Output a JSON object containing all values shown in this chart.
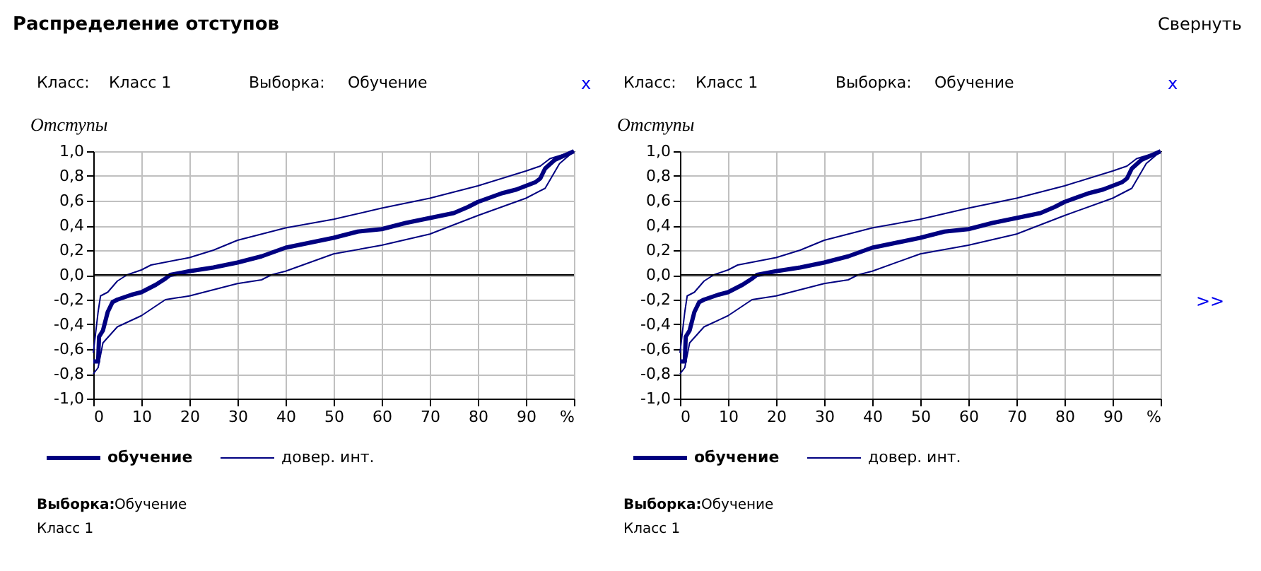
{
  "chart_data": [
    {
      "type": "line",
      "ylabel": "Отступы",
      "xlim": [
        0,
        100
      ],
      "ylim": [
        -1.0,
        1.0
      ],
      "xticks": [
        0,
        10,
        20,
        30,
        40,
        50,
        60,
        70,
        80,
        90,
        {
          "value": 100,
          "label": "%"
        }
      ],
      "yticks": [
        {
          "value": -1.0,
          "label": "-1,0"
        },
        {
          "value": -0.8,
          "label": "-0,8"
        },
        {
          "value": -0.6,
          "label": "-0,6"
        },
        {
          "value": -0.4,
          "label": "-0,4"
        },
        {
          "value": -0.2,
          "label": "-0,2"
        },
        {
          "value": 0,
          "label": "0,0"
        },
        {
          "value": 0.2,
          "label": "0,2"
        },
        {
          "value": 0.4,
          "label": "0,4"
        },
        {
          "value": 0.6,
          "label": "0,6"
        },
        {
          "value": 0.8,
          "label": "0,8"
        },
        {
          "value": 1.0,
          "label": "1,0"
        }
      ],
      "grid": true,
      "legend": "bottom left",
      "ref_lines": [
        {
          "axis": "y",
          "value": 0,
          "color": "#000000"
        }
      ],
      "series": [
        {
          "name": "обучение",
          "color": "#000080",
          "x": [
            0,
            1,
            1.2,
            2,
            3,
            4,
            5,
            8,
            10,
            13,
            15,
            16,
            20,
            25,
            30,
            35,
            40,
            45,
            50,
            55,
            60,
            65,
            70,
            75,
            78,
            80,
            85,
            88,
            92,
            93,
            94,
            96,
            100
          ],
          "values": [
            -0.7,
            -0.7,
            -0.5,
            -0.45,
            -0.3,
            -0.22,
            -0.2,
            -0.16,
            -0.14,
            -0.08,
            -0.03,
            0,
            0.03,
            0.06,
            0.1,
            0.15,
            0.22,
            0.26,
            0.3,
            0.35,
            0.37,
            0.42,
            0.46,
            0.5,
            0.55,
            0.59,
            0.66,
            0.69,
            0.75,
            0.78,
            0.86,
            0.93,
            1.0
          ]
        },
        {
          "name": "довер. инт.",
          "color": "#000080",
          "x": [
            0,
            1,
            1.5,
            3,
            5,
            7,
            10,
            12,
            20,
            25,
            30,
            40,
            50,
            60,
            70,
            80,
            90,
            93,
            95,
            100
          ],
          "values": [
            -0.63,
            -0.3,
            -0.17,
            -0.14,
            -0.05,
            0,
            0.04,
            0.08,
            0.14,
            0.2,
            0.28,
            0.38,
            0.45,
            0.54,
            0.62,
            0.72,
            0.84,
            0.88,
            0.94,
            1.0
          ]
        },
        {
          "color": "#000080",
          "x": [
            0,
            1,
            2,
            5,
            10,
            15,
            20,
            30,
            35,
            37,
            40,
            50,
            60,
            70,
            78,
            80,
            90,
            94,
            97,
            100
          ],
          "values": [
            -0.8,
            -0.75,
            -0.55,
            -0.42,
            -0.33,
            -0.2,
            -0.17,
            -0.07,
            -0.04,
            0,
            0.03,
            0.17,
            0.24,
            0.33,
            0.45,
            0.48,
            0.62,
            0.7,
            0.9,
            1.0
          ]
        }
      ],
      "annotations": [
        "Распределение отступов",
        "Класс:",
        "Класс 1",
        "Выборка:",
        "Обучение",
        "x",
        "Выборка:",
        "Обучение",
        "Класс 1"
      ]
    },
    {
      "type": "line",
      "ylabel": "Отступы",
      "xlim": [
        0,
        100
      ],
      "ylim": [
        -1.0,
        1.0
      ],
      "xticks": [
        0,
        10,
        20,
        30,
        40,
        50,
        60,
        70,
        80,
        90,
        {
          "value": 100,
          "label": "%"
        }
      ],
      "yticks": [
        {
          "value": -1.0,
          "label": "-1,0"
        },
        {
          "value": -0.8,
          "label": "-0,8"
        },
        {
          "value": -0.6,
          "label": "-0,6"
        },
        {
          "value": -0.4,
          "label": "-0,4"
        },
        {
          "value": -0.2,
          "label": "-0,2"
        },
        {
          "value": 0,
          "label": "0,0"
        },
        {
          "value": 0.2,
          "label": "0,2"
        },
        {
          "value": 0.4,
          "label": "0,4"
        },
        {
          "value": 0.6,
          "label": "0,6"
        },
        {
          "value": 0.8,
          "label": "0,8"
        },
        {
          "value": 1.0,
          "label": "1,0"
        }
      ],
      "grid": true,
      "legend": "bottom left",
      "ref_lines": [
        {
          "axis": "y",
          "value": 0,
          "color": "#000000"
        }
      ],
      "series": [
        {
          "name": "обучение",
          "color": "#000080",
          "x": [
            0,
            1,
            1.2,
            2,
            3,
            4,
            5,
            8,
            10,
            13,
            15,
            16,
            20,
            25,
            30,
            35,
            40,
            45,
            50,
            55,
            60,
            65,
            70,
            75,
            78,
            80,
            85,
            88,
            92,
            93,
            94,
            96,
            100
          ],
          "values": [
            -0.7,
            -0.7,
            -0.5,
            -0.45,
            -0.3,
            -0.22,
            -0.2,
            -0.16,
            -0.14,
            -0.08,
            -0.03,
            0,
            0.03,
            0.06,
            0.1,
            0.15,
            0.22,
            0.26,
            0.3,
            0.35,
            0.37,
            0.42,
            0.46,
            0.5,
            0.55,
            0.59,
            0.66,
            0.69,
            0.75,
            0.78,
            0.86,
            0.93,
            1.0
          ]
        },
        {
          "name": "довер. инт.",
          "color": "#000080",
          "x": [
            0,
            1,
            1.5,
            3,
            5,
            7,
            10,
            12,
            20,
            25,
            30,
            40,
            50,
            60,
            70,
            80,
            90,
            93,
            95,
            100
          ],
          "values": [
            -0.63,
            -0.3,
            -0.17,
            -0.14,
            -0.05,
            0,
            0.04,
            0.08,
            0.14,
            0.2,
            0.28,
            0.38,
            0.45,
            0.54,
            0.62,
            0.72,
            0.84,
            0.88,
            0.94,
            1.0
          ]
        },
        {
          "color": "#000080",
          "x": [
            0,
            1,
            2,
            5,
            10,
            15,
            20,
            30,
            35,
            37,
            40,
            50,
            60,
            70,
            78,
            80,
            90,
            94,
            97,
            100
          ],
          "values": [
            -0.8,
            -0.75,
            -0.55,
            -0.42,
            -0.33,
            -0.2,
            -0.17,
            -0.07,
            -0.04,
            0,
            0.03,
            0.17,
            0.24,
            0.33,
            0.45,
            0.48,
            0.62,
            0.7,
            0.9,
            1.0
          ]
        }
      ],
      "annotations": [
        "Свернуть",
        "Класс:",
        "Класс 1",
        "Выборка:",
        "Обучение",
        "x",
        "Выборка:",
        "Обучение",
        "Класс 1",
        ">>"
      ]
    }
  ]
}
